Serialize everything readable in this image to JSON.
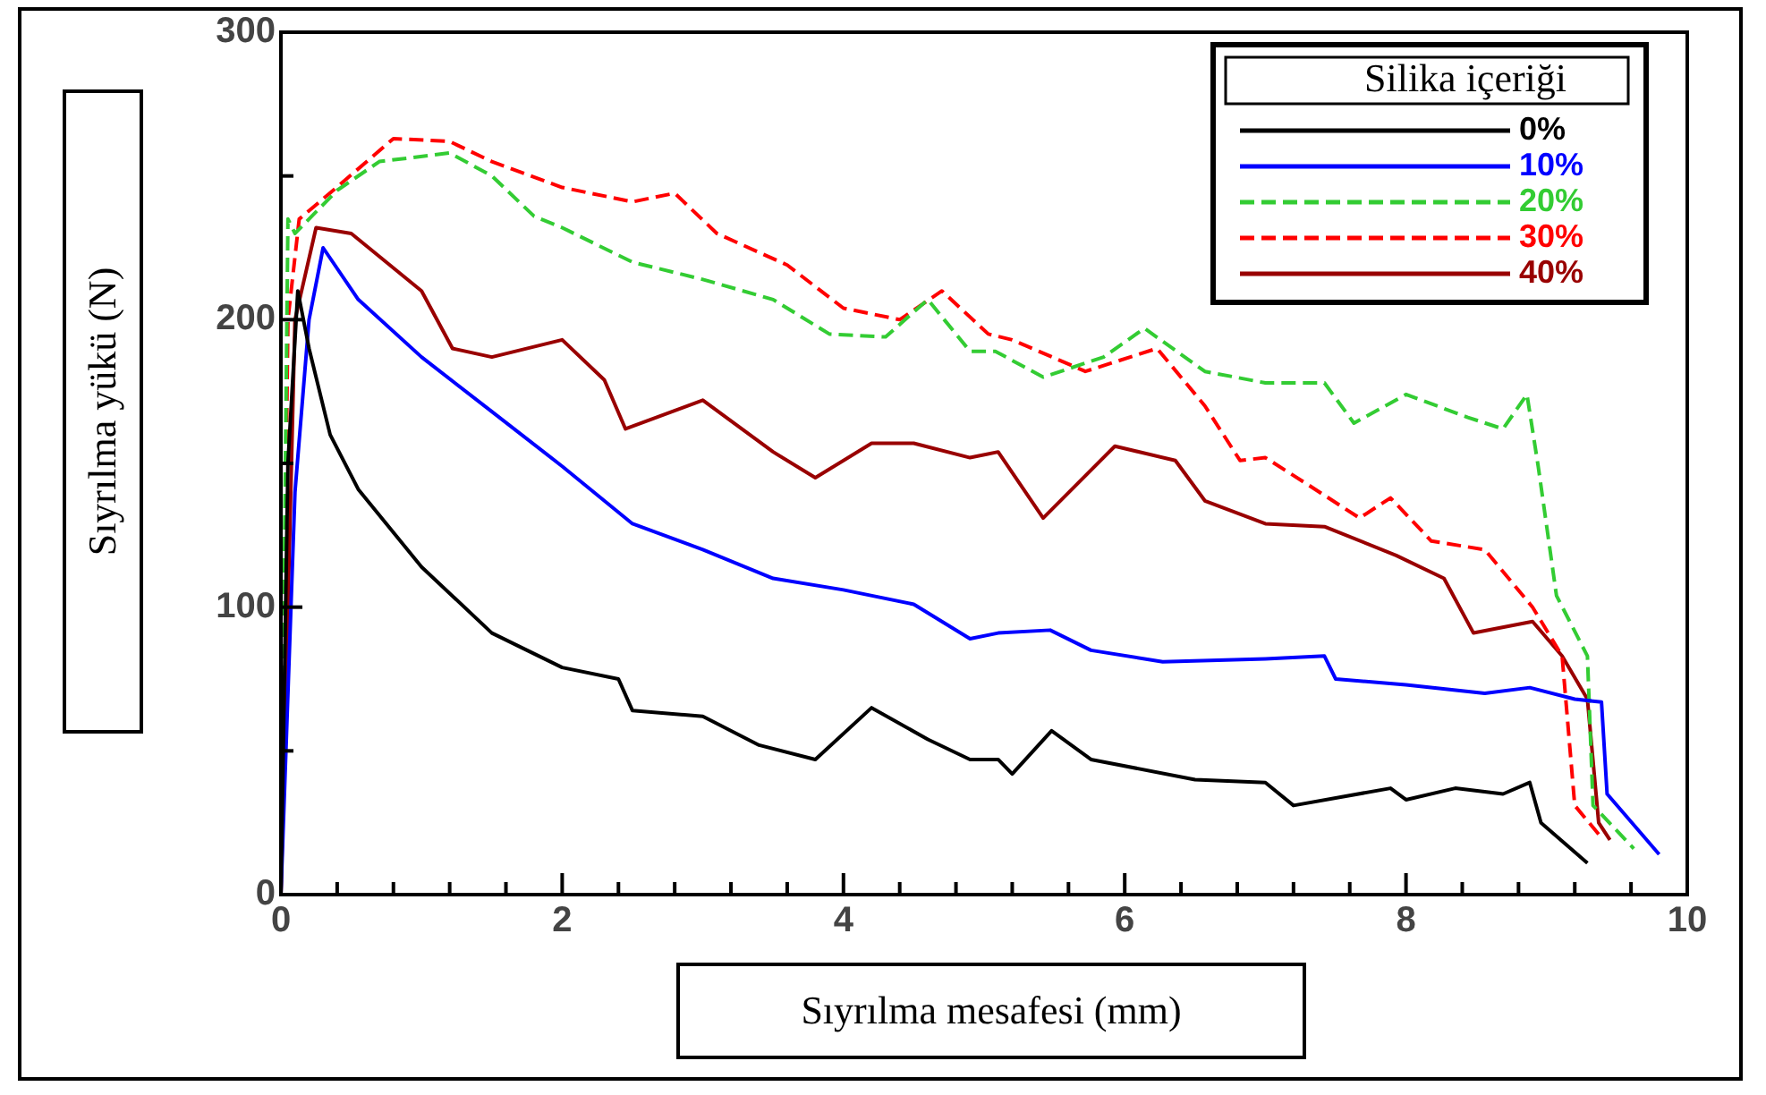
{
  "chart_data": {
    "type": "line",
    "xlabel": "Sıyrılma mesafesi (mm)",
    "ylabel": "Sıyrılma yükü (N)",
    "legend_title": "Silika içeriği",
    "xlim": [
      0,
      10
    ],
    "ylim": [
      0,
      300
    ],
    "xticks": [
      0,
      {
        "value": 0.4,
        "label": null
      },
      {
        "value": 0.8,
        "label": null
      },
      {
        "value": 1.2,
        "label": null
      },
      {
        "value": 1.6,
        "label": null
      },
      2,
      {
        "value": 2.4,
        "label": null
      },
      {
        "value": 2.8,
        "label": null
      },
      {
        "value": 3.2,
        "label": null
      },
      {
        "value": 3.6,
        "label": null
      },
      4,
      {
        "value": 4.4,
        "label": null
      },
      {
        "value": 4.8,
        "label": null
      },
      {
        "value": 5.2,
        "label": null
      },
      {
        "value": 5.6,
        "label": null
      },
      6,
      {
        "value": 6.4,
        "label": null
      },
      {
        "value": 6.8,
        "label": null
      },
      {
        "value": 7.2,
        "label": null
      },
      {
        "value": 7.6,
        "label": null
      },
      8,
      {
        "value": 8.4,
        "label": null
      },
      {
        "value": 8.8,
        "label": null
      },
      {
        "value": 9.2,
        "label": null
      },
      {
        "value": 9.6,
        "label": null
      },
      10
    ],
    "yticks": [
      0,
      {
        "value": 50,
        "label": null
      },
      100,
      {
        "value": 150,
        "label": null
      },
      200,
      {
        "value": 250,
        "label": null
      },
      300
    ],
    "grid": false,
    "legend": "top right",
    "marker": "none",
    "series": [
      {
        "name": "0%",
        "color": "#000000",
        "line_style": "solid",
        "x": [
          0,
          0.05,
          0.12,
          0.2,
          0.35,
          0.55,
          1,
          1.5,
          2,
          2.4,
          2.5,
          3,
          3.4,
          3.8,
          4.2,
          4.6,
          4.9,
          5.1,
          5.2,
          5.48,
          5.76,
          6.5,
          7,
          7.2,
          7.89,
          8,
          8.35,
          8.69,
          8.88,
          8.96,
          9.29
        ],
        "values": [
          0,
          150,
          210,
          190,
          160,
          141,
          114,
          91,
          79,
          75,
          64,
          62,
          52,
          47,
          65,
          54,
          47,
          47,
          42,
          57,
          47,
          40,
          39,
          31,
          37,
          33,
          37,
          35,
          39,
          25,
          11
        ]
      },
      {
        "name": "10%",
        "color": "#0000ff",
        "line_style": "solid",
        "x": [
          0,
          0.1,
          0.2,
          0.3,
          0.55,
          1,
          1.5,
          2,
          2.5,
          3,
          3.5,
          4,
          4.5,
          4.9,
          5.1,
          5.47,
          5.76,
          6.27,
          7,
          7.42,
          7.5,
          8,
          8.56,
          8.88,
          9.2,
          9.39,
          9.43,
          9.8
        ],
        "values": [
          0,
          140,
          200,
          225,
          207,
          187,
          168,
          149,
          129,
          120,
          110,
          106,
          101,
          89,
          91,
          92,
          85,
          81,
          82,
          83,
          75,
          73,
          70,
          72,
          68,
          67,
          35,
          14
        ]
      },
      {
        "name": "20%",
        "color": "#33cc33",
        "line_style": "dashed",
        "x": [
          0,
          0.05,
          0.1,
          0.4,
          0.7,
          1.2,
          1.5,
          1.8,
          2,
          2.5,
          3,
          3.5,
          3.9,
          4.3,
          4.6,
          4.9,
          5.08,
          5.42,
          5.85,
          6.14,
          6.57,
          7,
          7.42,
          7.63,
          8,
          8.44,
          8.69,
          8.86,
          8.94,
          9.07,
          9.29,
          9.33,
          9.62
        ],
        "values": [
          0,
          235,
          230,
          245,
          255,
          258,
          250,
          236,
          232,
          220,
          214,
          207,
          195,
          194,
          207,
          189,
          189,
          180,
          187,
          197,
          182,
          178,
          178,
          164,
          174,
          166,
          162,
          174,
          149,
          104,
          83,
          31,
          16
        ]
      },
      {
        "name": "30%",
        "color": "#ff0000",
        "line_style": "dashed",
        "x": [
          0,
          0.05,
          0.13,
          0.42,
          0.8,
          1.2,
          1.5,
          2,
          2.5,
          2.8,
          3.1,
          3.6,
          4,
          4.4,
          4.7,
          5.03,
          5.2,
          5.72,
          6.23,
          6.57,
          6.82,
          7,
          7.29,
          7.67,
          7.89,
          8.18,
          8.56,
          8.9,
          9.11,
          9.2,
          9.37
        ],
        "values": [
          0,
          200,
          235,
          247,
          263,
          262,
          255,
          246,
          241,
          244,
          230,
          219,
          204,
          200,
          210,
          195,
          193,
          182,
          190,
          170,
          151,
          152,
          143,
          131,
          138,
          123,
          120,
          100,
          83,
          31,
          21
        ]
      },
      {
        "name": "40%",
        "color": "#990000",
        "line_style": "solid",
        "x": [
          0,
          0.1,
          0.25,
          0.5,
          1,
          1.22,
          1.5,
          2,
          2.3,
          2.45,
          3,
          3.5,
          3.8,
          4.2,
          4.5,
          4.9,
          5.1,
          5.42,
          5.93,
          6.36,
          6.57,
          7,
          7.42,
          7.93,
          8.27,
          8.48,
          8.9,
          9.11,
          9.29,
          9.37,
          9.45
        ],
        "values": [
          0,
          200,
          232,
          230,
          210,
          190,
          187,
          193,
          179,
          162,
          172,
          154,
          145,
          157,
          157,
          152,
          154,
          131,
          156,
          151,
          137,
          129,
          128,
          118,
          110,
          91,
          95,
          83,
          68,
          25,
          19
        ]
      }
    ]
  }
}
